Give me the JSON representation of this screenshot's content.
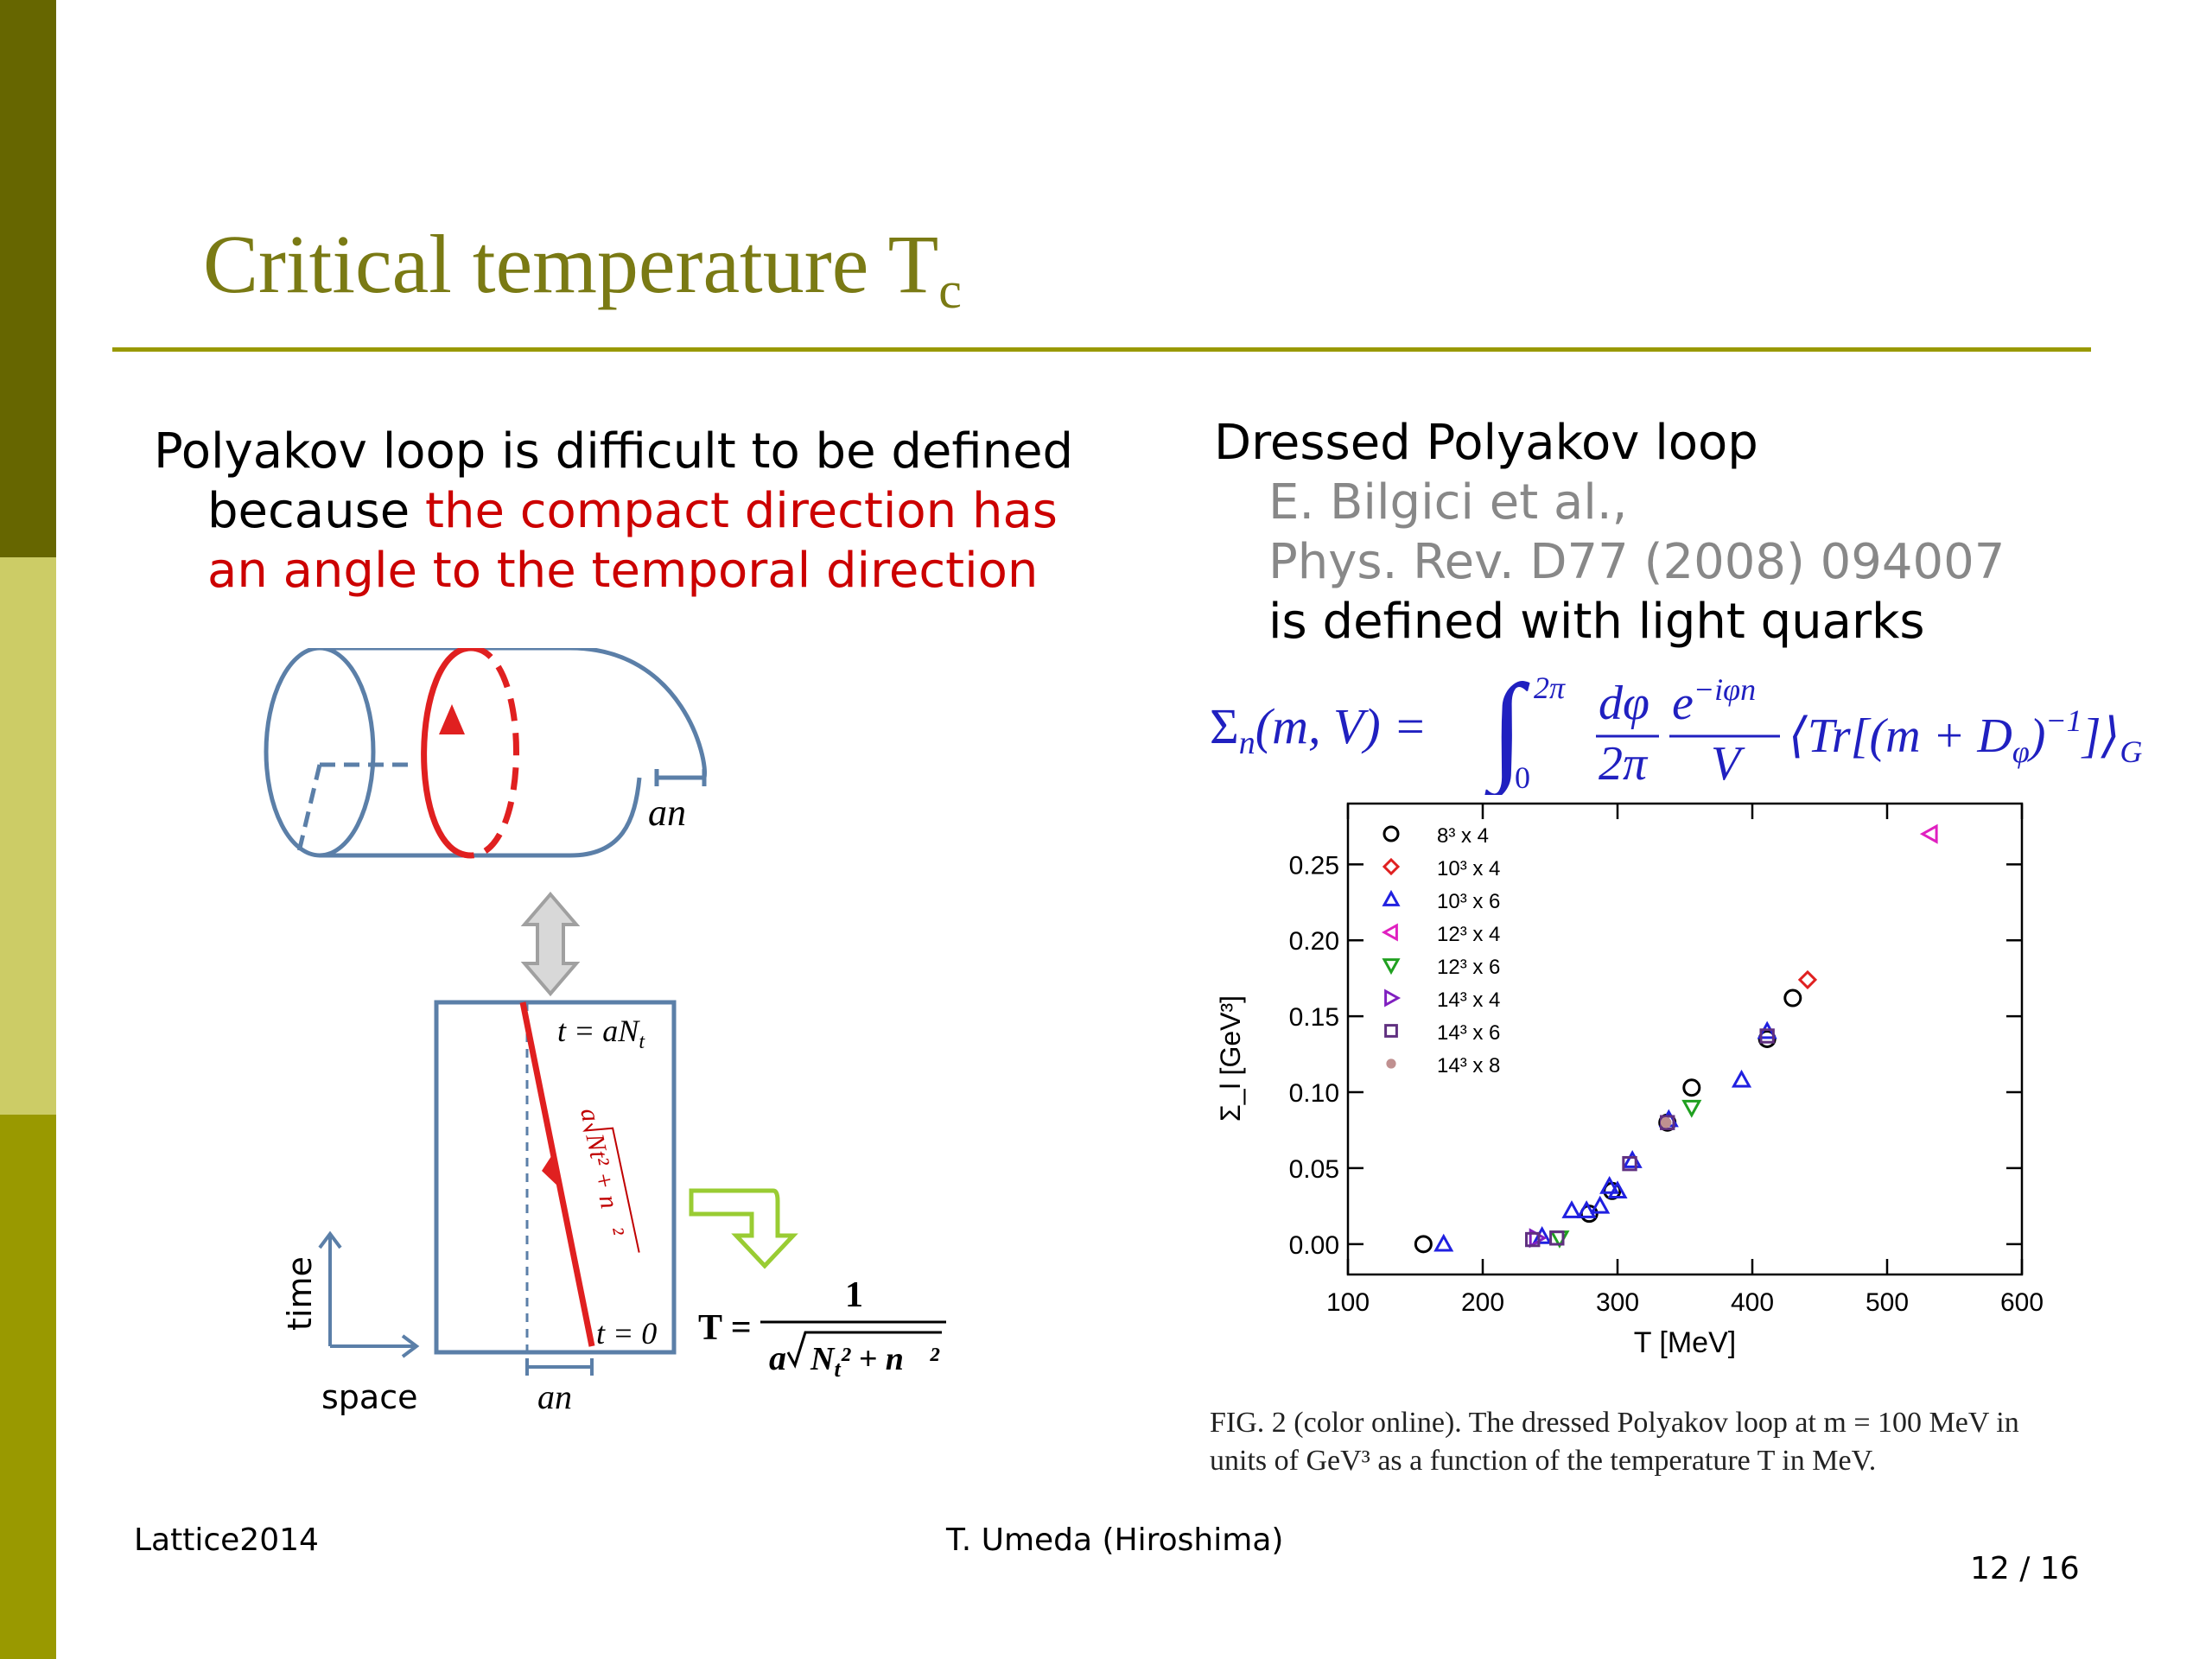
{
  "slide": {
    "title": "Critical temperature T",
    "title_subscript": "c",
    "left_text": {
      "line1": "Polyakov loop is difficult to be defined",
      "line2_prefix": "because ",
      "line2_red": "the compact direction has",
      "line3_red": "an angle to the temporal direction"
    },
    "right_text": {
      "heading": "Dressed Polyakov loop",
      "ref_authors": "E. Bilgici et al.,",
      "ref_journal": "Phys. Rev. D77 (2008) 094007",
      "defined": "is defined with light quarks"
    },
    "formula": {
      "lhs": "Σ",
      "lhs_sub": "n",
      "lhs_args": "(m, V) =",
      "integral_upper": "2π",
      "integral_lower": "0",
      "frac1_num": "dφ",
      "frac1_den": "2π",
      "frac2_num": "e",
      "frac2_num_exp": "−iφn",
      "frac2_den": "V",
      "bracket": "⟨Tr[(m + D",
      "bracket_sub": "φ",
      "bracket_close": ")",
      "bracket_exp": "−1",
      "bracket_end": "]⟩",
      "bracket_end_sub": "G"
    },
    "diagram": {
      "label_an_top": "an⃗",
      "label_t_aNt": "t = aN",
      "label_t_aNt_sub": "t",
      "label_t0": "t = 0",
      "label_diag_a": "a",
      "label_diag_sqrt": "N",
      "label_diag_sqrt_rest": "t² + n⃗²",
      "label_an_bottom": "an⃗",
      "axis_time": "time",
      "axis_space": "space",
      "T_lhs": "T =",
      "T_num": "1",
      "T_den_a": "a",
      "T_den_N": "N",
      "T_den_sub": "t",
      "T_den_rest": "² + n⃗²"
    },
    "caption": {
      "text": "FIG. 2 (color online).   The dressed Polyakov loop at   m = 100 MeV in units of  GeV³ as a function of the temperature  T in MeV."
    },
    "footer": {
      "left": "Lattice2014",
      "center": "T. Umeda (Hiroshima)",
      "page": "12 / 16"
    }
  },
  "colors": {
    "title": "#7a7a14",
    "accent_red": "#cc0000",
    "formula_blue": "#2020c0",
    "diagram_blue": "#5b7fa8",
    "arrow_green": "#99cc33"
  },
  "chart_data": {
    "type": "scatter",
    "xlabel": "T [MeV]",
    "ylabel": "Σ_l [GeV³]",
    "xlim": [
      100,
      600
    ],
    "ylim": [
      -0.02,
      0.29
    ],
    "xticks": [
      100,
      200,
      300,
      400,
      500,
      600
    ],
    "yticks": [
      0.0,
      0.05,
      0.1,
      0.15,
      0.2,
      0.25
    ],
    "ytick_labels": [
      "0.00",
      "0.05",
      "0.10",
      "0.15",
      "0.20",
      "0.25"
    ],
    "legend_position": "top-left",
    "series": [
      {
        "name": "8³ x 4",
        "marker": "circle",
        "color": "#000000",
        "points": [
          [
            156,
            0.0
          ],
          [
            279,
            0.02
          ],
          [
            296,
            0.035
          ],
          [
            337,
            0.08
          ],
          [
            355,
            0.103
          ],
          [
            411,
            0.135
          ],
          [
            430,
            0.162
          ]
        ]
      },
      {
        "name": "10³ x 4",
        "marker": "diamond",
        "color": "#e02020",
        "points": [
          [
            441,
            0.174
          ]
        ]
      },
      {
        "name": "10³ x 6",
        "marker": "triangle-up",
        "color": "#2020e0",
        "points": [
          [
            171,
            0.0
          ],
          [
            244,
            0.005
          ],
          [
            266,
            0.022
          ],
          [
            277,
            0.022
          ],
          [
            287,
            0.025
          ],
          [
            294,
            0.038
          ],
          [
            300,
            0.035
          ],
          [
            311,
            0.055
          ],
          [
            338,
            0.082
          ],
          [
            392,
            0.108
          ],
          [
            411,
            0.14
          ]
        ]
      },
      {
        "name": "12³ x 4",
        "marker": "triangle-left",
        "color": "#e020c0",
        "points": [
          [
            532,
            0.27
          ]
        ]
      },
      {
        "name": "12³ x 6",
        "marker": "triangle-down",
        "color": "#20a020",
        "points": [
          [
            257,
            0.004
          ],
          [
            355,
            0.09
          ]
        ]
      },
      {
        "name": "14³ x 4",
        "marker": "triangle-right",
        "color": "#8020c0",
        "points": [
          [
            240,
            0.004
          ]
        ]
      },
      {
        "name": "14³ x 6",
        "marker": "square",
        "color": "#603080",
        "points": [
          [
            237,
            0.003
          ],
          [
            255,
            0.004
          ],
          [
            309,
            0.053
          ],
          [
            337,
            0.08
          ],
          [
            411,
            0.137
          ]
        ]
      },
      {
        "name": "14³ x 8",
        "marker": "star",
        "color": "#c09090",
        "points": [
          [
            336,
            0.08
          ]
        ]
      }
    ]
  }
}
